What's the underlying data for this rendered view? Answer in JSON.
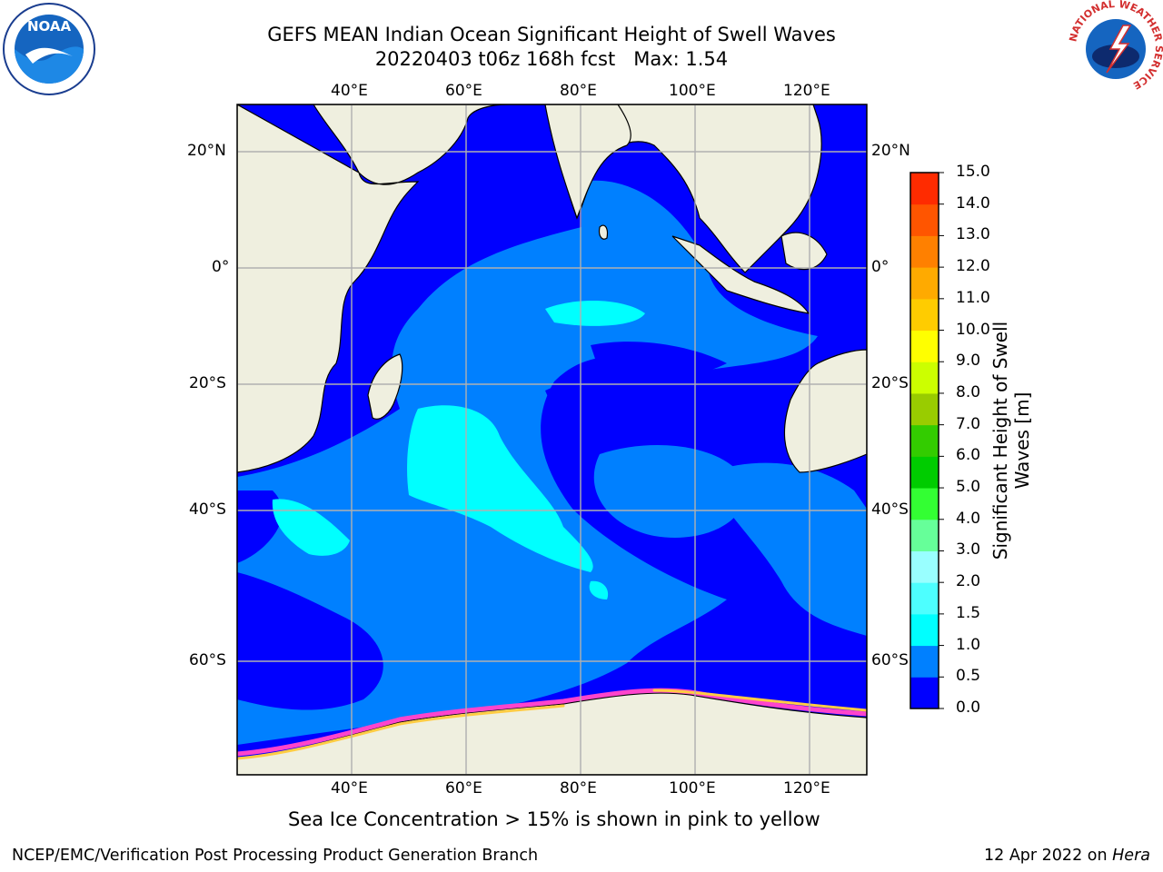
{
  "title": {
    "line1": "GEFS MEAN Indian Ocean Significant Height of Swell Waves",
    "line2": "20220403 t06z 168h fcst   Max: 1.54"
  },
  "map": {
    "lon_labels": [
      "40°E",
      "60°E",
      "80°E",
      "100°E",
      "120°E"
    ],
    "lat_labels": [
      "20°N",
      "0°",
      "20°S",
      "40°S",
      "60°S"
    ]
  },
  "colorbar": {
    "title_line1": "Significant Height of Swell",
    "title_line2": "Waves [m]",
    "ticks": [
      "15.0",
      "14.0",
      "13.0",
      "12.0",
      "11.0",
      "10.0",
      "9.0",
      "8.0",
      "7.0",
      "6.0",
      "5.0",
      "4.0",
      "3.0",
      "2.0",
      "1.5",
      "1.0",
      "0.5",
      "0.0"
    ],
    "colors_bottom_to_top": [
      "#0000ff",
      "#0080ff",
      "#00ffff",
      "#4dffff",
      "#99ffff",
      "#66ff99",
      "#33ff33",
      "#00cc00",
      "#33cc00",
      "#99cc00",
      "#ccff00",
      "#ffff00",
      "#ffcc00",
      "#ffaa00",
      "#ff8000",
      "#ff5500",
      "#ff2b00"
    ]
  },
  "note": "Sea Ice Concentration > 15% is shown in pink to yellow",
  "footer": {
    "left": "NCEP/EMC/Verification Post Processing Product Generation Branch",
    "right_date": "12 Apr 2022 on ",
    "right_host": "Hera"
  },
  "logos": {
    "noaa_text": "NOAA",
    "nws_ring": "NATIONAL WEATHER SERVICE"
  },
  "colors": {
    "land": "#efefdf",
    "ocean_deep": "#0000ff",
    "ocean_mid": "#0080ff",
    "ocean_light": "#00ffff",
    "grid": "#b0b0b0"
  }
}
